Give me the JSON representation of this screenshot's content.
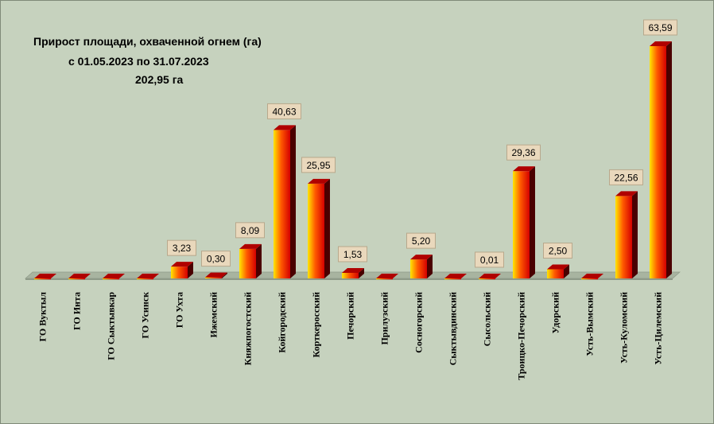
{
  "chart_data": {
    "type": "bar",
    "title": "Прирост площади, охваченной огнем (га)",
    "subtitle": "с 01.05.2023  по  31.07.2023",
    "total": "202,95 га",
    "categories": [
      "ГО Вуктыл",
      "ГО Инта",
      "ГО Сыктывкар",
      "ГО Усинск",
      "ГО Ухта",
      "Ижемский",
      "Княжпогостский",
      "Койгородский",
      "Корткеросский",
      "Печорский",
      "Прилузский",
      "Сосногорский",
      "Сыктывдинский",
      "Сысольский",
      "Троицко-Печорский",
      "Удорский",
      "Усть-Вымский",
      "Усть-Куломский",
      "Усть-Цилемский"
    ],
    "values": [
      0,
      0,
      0,
      0,
      3.23,
      0.3,
      8.09,
      40.63,
      25.95,
      1.53,
      0,
      5.2,
      0,
      0.01,
      29.36,
      2.5,
      0,
      22.56,
      63.59
    ],
    "data_labels": [
      "",
      "",
      "",
      "",
      "3,23",
      "0,30",
      "8,09",
      "40,63",
      "25,95",
      "1,53",
      "",
      "5,20",
      "",
      "0,01",
      "29,36",
      "2,50",
      "",
      "22,56",
      "63,59"
    ],
    "ylim": [
      0,
      63.59
    ],
    "grid": false,
    "legend": "none",
    "colors": {
      "bar_light": "#ffe600",
      "bar_mid": "#ff5a00",
      "bar_dark": "#d40000",
      "bar_side": "#4a0000",
      "bar_top": "#b00000",
      "floor": "#a8b4a0",
      "label_bg": "#e9d8bc",
      "label_border": "#b8a88c",
      "background": "#c6d2be"
    }
  }
}
